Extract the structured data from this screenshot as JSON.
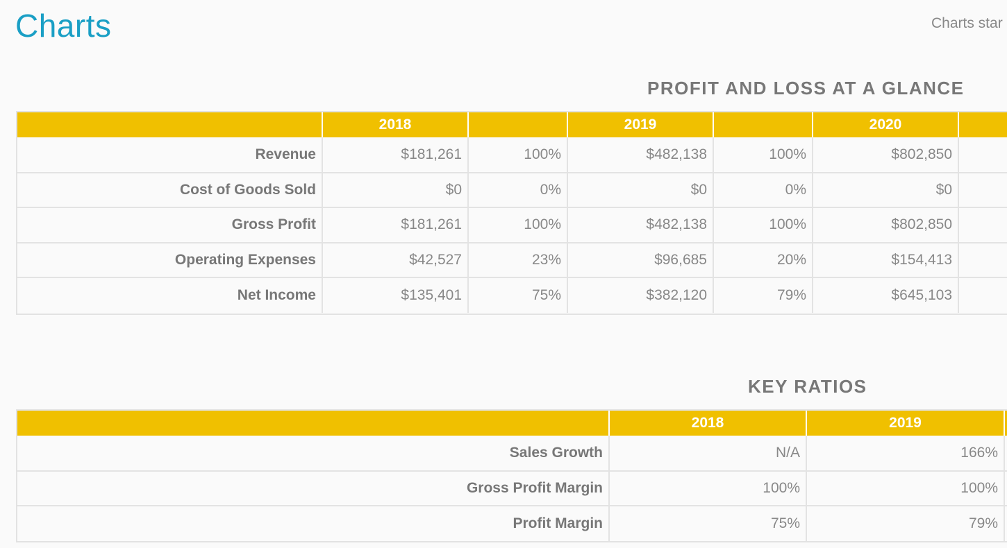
{
  "header": {
    "title": "Charts",
    "note": "Charts star"
  },
  "profit_loss": {
    "title": "PROFIT AND LOSS AT A GLANCE",
    "years": [
      "2018",
      "2019",
      "2020"
    ],
    "rows": [
      {
        "label": "Revenue",
        "cells": [
          "$181,261",
          "100%",
          "$482,138",
          "100%",
          "$802,850"
        ]
      },
      {
        "label": "Cost of Goods Sold",
        "cells": [
          "$0",
          "0%",
          "$0",
          "0%",
          "$0"
        ]
      },
      {
        "label": "Gross Profit",
        "cells": [
          "$181,261",
          "100%",
          "$482,138",
          "100%",
          "$802,850"
        ]
      },
      {
        "label": "Operating Expenses",
        "cells": [
          "$42,527",
          "23%",
          "$96,685",
          "20%",
          "$154,413"
        ]
      },
      {
        "label": "Net Income",
        "cells": [
          "$135,401",
          "75%",
          "$382,120",
          "79%",
          "$645,103"
        ]
      }
    ]
  },
  "key_ratios": {
    "title": "KEY RATIOS",
    "years": [
      "2018",
      "2019"
    ],
    "rows": [
      {
        "label": "Sales Growth",
        "cells": [
          "N/A",
          "166%"
        ]
      },
      {
        "label": "Gross Profit Margin",
        "cells": [
          "100%",
          "100%"
        ]
      },
      {
        "label": "Profit Margin",
        "cells": [
          "75%",
          "79%"
        ]
      }
    ]
  }
}
